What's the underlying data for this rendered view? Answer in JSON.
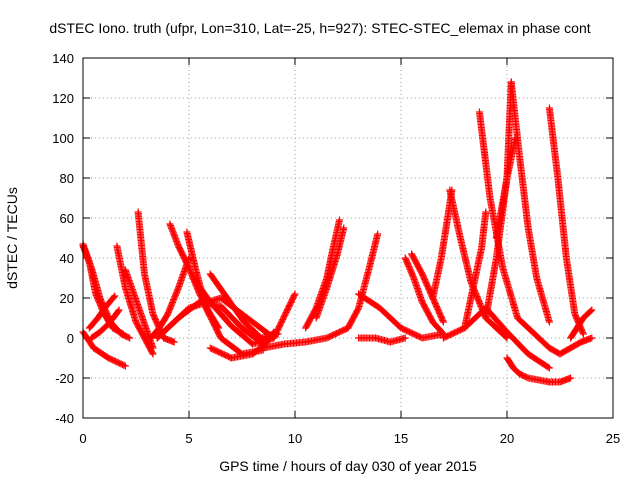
{
  "chart_data": {
    "type": "scatter",
    "title": "dSTEC Iono. truth (ufpr, Lon=310, Lat=-25, h=927): STEC-STEC_elemax in phase cont",
    "xlabel": "GPS time / hours of day 030 of year 2015",
    "ylabel": "dSTEC  / TECUs",
    "xlim": [
      0,
      25
    ],
    "ylim": [
      -40,
      140
    ],
    "xticks": [
      "0",
      "5",
      "10",
      "15",
      "20",
      "25"
    ],
    "yticks": [
      "-40",
      "-20",
      "0",
      "20",
      "40",
      "60",
      "80",
      "100",
      "120",
      "140"
    ],
    "grid": true,
    "marker": "plus",
    "color": "#ff0000",
    "series": [
      {
        "x": [
          0.0,
          0.5,
          1.2,
          2.0
        ],
        "values": [
          3,
          -5,
          -10,
          -14
        ]
      },
      {
        "x": [
          0.0,
          0.3,
          0.6,
          1.0,
          1.4,
          1.9
        ],
        "values": [
          47,
          38,
          22,
          12,
          5,
          2
        ]
      },
      {
        "x": [
          0.0,
          0.4,
          0.8,
          1.3,
          1.8,
          2.2
        ],
        "values": [
          46,
          35,
          20,
          8,
          2,
          0
        ]
      },
      {
        "x": [
          0.4,
          0.8,
          1.2,
          1.5,
          1.7
        ],
        "values": [
          0,
          3,
          7,
          11,
          14
        ]
      },
      {
        "x": [
          0.3,
          0.7,
          1.1,
          1.5
        ],
        "values": [
          5,
          10,
          16,
          21
        ]
      },
      {
        "x": [
          1.6,
          2.0,
          2.5,
          3.0,
          3.3
        ],
        "values": [
          46,
          25,
          8,
          -2,
          -8
        ]
      },
      {
        "x": [
          2.0,
          2.4,
          2.8,
          3.3
        ],
        "values": [
          34,
          22,
          10,
          -5
        ]
      },
      {
        "x": [
          2.6,
          2.9,
          3.3,
          3.8,
          4.3
        ],
        "values": [
          63,
          32,
          12,
          0,
          -2
        ]
      },
      {
        "x": [
          3.2,
          3.6,
          4.0,
          4.5,
          5.0
        ],
        "values": [
          0,
          5,
          12,
          25,
          40
        ]
      },
      {
        "x": [
          4.1,
          4.5,
          5.0,
          5.5,
          6.0,
          6.4
        ],
        "values": [
          57,
          46,
          35,
          22,
          12,
          5
        ]
      },
      {
        "x": [
          4.9,
          5.3,
          5.8,
          6.5,
          7.5,
          8.5
        ],
        "values": [
          53,
          35,
          15,
          0,
          -8,
          -6
        ]
      },
      {
        "x": [
          3.5,
          4.5,
          5.5,
          6.5,
          7.5,
          8.5
        ],
        "values": [
          0,
          10,
          18,
          16,
          5,
          -3
        ]
      },
      {
        "x": [
          5.2,
          6.0,
          7.0,
          8.0,
          9.0
        ],
        "values": [
          30,
          18,
          6,
          -3,
          0
        ]
      },
      {
        "x": [
          6.0,
          6.8,
          7.6,
          8.4,
          9.2
        ],
        "values": [
          32,
          20,
          8,
          0,
          2
        ]
      },
      {
        "x": [
          6.0,
          7.0,
          8.0,
          8.6,
          9.0
        ],
        "values": [
          -5,
          -10,
          -8,
          -3,
          3
        ]
      },
      {
        "x": [
          3.5,
          5.0,
          6.5,
          8.0,
          9.0,
          10.0
        ],
        "values": [
          0,
          15,
          20,
          8,
          0,
          22
        ]
      },
      {
        "x": [
          8.5,
          9.5,
          10.5,
          11.5,
          12.5
        ],
        "values": [
          -5,
          -3,
          -2,
          0,
          5
        ]
      },
      {
        "x": [
          10.5,
          11.0,
          11.5,
          11.8,
          12.1
        ],
        "values": [
          5,
          15,
          30,
          45,
          59
        ]
      },
      {
        "x": [
          11.0,
          11.5,
          12.0,
          12.3
        ],
        "values": [
          10,
          25,
          42,
          55
        ]
      },
      {
        "x": [
          12.5,
          13.0,
          13.5,
          13.9
        ],
        "values": [
          5,
          15,
          35,
          52
        ]
      },
      {
        "x": [
          13.0,
          14.0,
          15.0,
          16.0,
          17.0
        ],
        "values": [
          22,
          15,
          5,
          0,
          2
        ]
      },
      {
        "x": [
          13.0,
          13.8,
          14.5,
          15.2
        ],
        "values": [
          0,
          0,
          -2,
          0
        ]
      },
      {
        "x": [
          15.2,
          15.6,
          16.0,
          16.5,
          17.0
        ],
        "values": [
          40,
          30,
          18,
          8,
          2
        ]
      },
      {
        "x": [
          15.5,
          16.0,
          16.5,
          17.0
        ],
        "values": [
          42,
          32,
          20,
          8
        ]
      },
      {
        "x": [
          16.5,
          16.9,
          17.2,
          17.4
        ],
        "values": [
          20,
          40,
          60,
          74
        ]
      },
      {
        "x": [
          17.3,
          17.8,
          18.3,
          19.0,
          20.0
        ],
        "values": [
          74,
          50,
          28,
          10,
          0
        ]
      },
      {
        "x": [
          17.0,
          18.0,
          19.0,
          20.0,
          21.0,
          22.0
        ],
        "values": [
          0,
          5,
          15,
          3,
          -8,
          -15
        ]
      },
      {
        "x": [
          18.0,
          18.4,
          18.8,
          19.0
        ],
        "values": [
          5,
          25,
          45,
          63
        ]
      },
      {
        "x": [
          18.7,
          19.2,
          19.8,
          20.5,
          21.5
        ],
        "values": [
          113,
          70,
          35,
          10,
          0
        ]
      },
      {
        "x": [
          19.0,
          19.5,
          20.0,
          20.2
        ],
        "values": [
          10,
          40,
          80,
          128
        ]
      },
      {
        "x": [
          20.2,
          20.6,
          21.0,
          21.4,
          22.0
        ],
        "values": [
          128,
          90,
          55,
          30,
          8
        ]
      },
      {
        "x": [
          20.0,
          20.3,
          20.6,
          21.0,
          21.5,
          22.0
        ],
        "values": [
          -10,
          -15,
          -18,
          -20,
          -21,
          -22
        ]
      },
      {
        "x": [
          19.5,
          20.0,
          20.4
        ],
        "values": [
          50,
          80,
          100
        ]
      },
      {
        "x": [
          22.0,
          22.4,
          22.8,
          23.2,
          23.6
        ],
        "values": [
          115,
          80,
          40,
          12,
          2
        ]
      },
      {
        "x": [
          22.0,
          22.5,
          23.0
        ],
        "values": [
          -22,
          -22,
          -20
        ]
      },
      {
        "x": [
          23.0,
          23.3,
          23.6,
          24.0
        ],
        "values": [
          0,
          5,
          10,
          14
        ]
      },
      {
        "x": [
          21.5,
          22.0,
          22.5,
          23.0,
          23.5,
          24.0
        ],
        "values": [
          0,
          -5,
          -8,
          -5,
          -2,
          0
        ]
      }
    ]
  }
}
